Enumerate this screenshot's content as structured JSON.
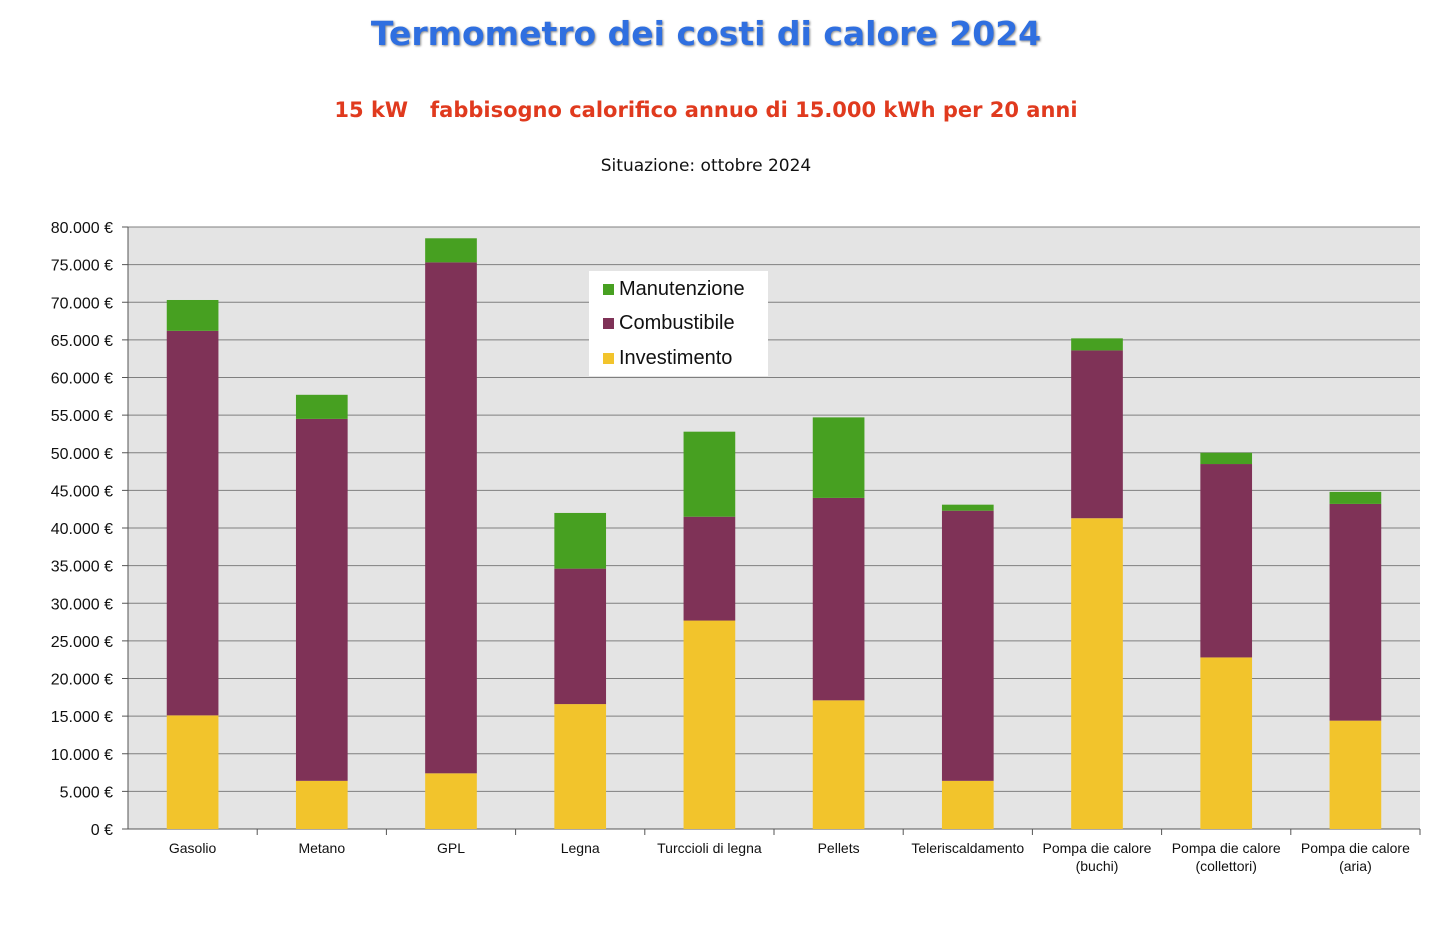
{
  "title": "Termometro dei costi di calore 2024",
  "subtitle": "15 kW   fabbisogno calorifico annuo di 15.000 kWh per 20 anni",
  "situation": "Situazione: ottobre 2024",
  "colors": {
    "investimento": "#f2c42c",
    "combustibile": "#7f3257",
    "manutenzione": "#47a021",
    "plot_background": "#e4e4e4",
    "grid": "#7f7f7f"
  },
  "legend": [
    {
      "key": "manutenzione",
      "label": "Manutenzione"
    },
    {
      "key": "combustibile",
      "label": "Combustibile"
    },
    {
      "key": "investimento",
      "label": "Investimento"
    }
  ],
  "chart_data": {
    "type": "bar",
    "stacked": true,
    "categories": [
      "Gasolio",
      "Metano",
      "GPL",
      "Legna",
      "Turccioli di legna",
      "Pellets",
      "Teleriscaldamento",
      "Pompa die calore\n(buchi)",
      "Pompa die calore\n(collettori)",
      "Pompa die calore\n(aria)"
    ],
    "series": [
      {
        "name": "Investimento",
        "values": [
          15100,
          6400,
          7400,
          16600,
          27700,
          17100,
          6400,
          41300,
          22800,
          14400
        ]
      },
      {
        "name": "Combustibile",
        "values": [
          51100,
          48100,
          67900,
          18000,
          13800,
          26900,
          35900,
          22300,
          25700,
          28800
        ]
      },
      {
        "name": "Manutenzione",
        "values": [
          4100,
          3200,
          3200,
          7400,
          11300,
          10700,
          800,
          1600,
          1500,
          1600
        ]
      }
    ],
    "ylim": [
      0,
      80000
    ],
    "yticks": [
      0,
      5000,
      10000,
      15000,
      20000,
      25000,
      30000,
      35000,
      40000,
      45000,
      50000,
      55000,
      60000,
      65000,
      70000,
      75000,
      80000
    ],
    "ytick_labels": [
      "0 €",
      "5.000 €",
      "10.000 €",
      "15.000 €",
      "20.000 €",
      "25.000 €",
      "30.000 €",
      "35.000 €",
      "40.000 €",
      "45.000 €",
      "50.000 €",
      "55.000 €",
      "60.000 €",
      "65.000 €",
      "70.000 €",
      "75.000 €",
      "80.000 €"
    ],
    "grid": true,
    "legend_position": "top-center"
  }
}
